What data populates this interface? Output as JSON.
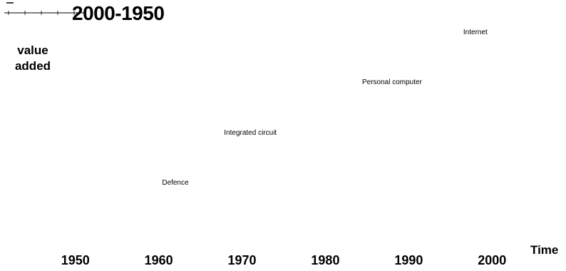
{
  "chart_data": {
    "type": "scatter",
    "title": "2000-1950",
    "xlabel": "Time",
    "ylabel": "value added",
    "x_ticks": [
      "1950",
      "1960",
      "1970",
      "1980",
      "1990",
      "2000"
    ],
    "xlim": [
      1946,
      2004
    ],
    "ylim": [
      0,
      4
    ],
    "points": [
      {
        "label": "Defence",
        "x": 1962,
        "y": 1
      },
      {
        "label": "Integrated circuit",
        "x": 1971,
        "y": 2
      },
      {
        "label": "Personal computer",
        "x": 1988,
        "y": 3
      },
      {
        "label": "Internet",
        "x": 1998,
        "y": 4
      }
    ],
    "grid": false,
    "legend": "none"
  }
}
